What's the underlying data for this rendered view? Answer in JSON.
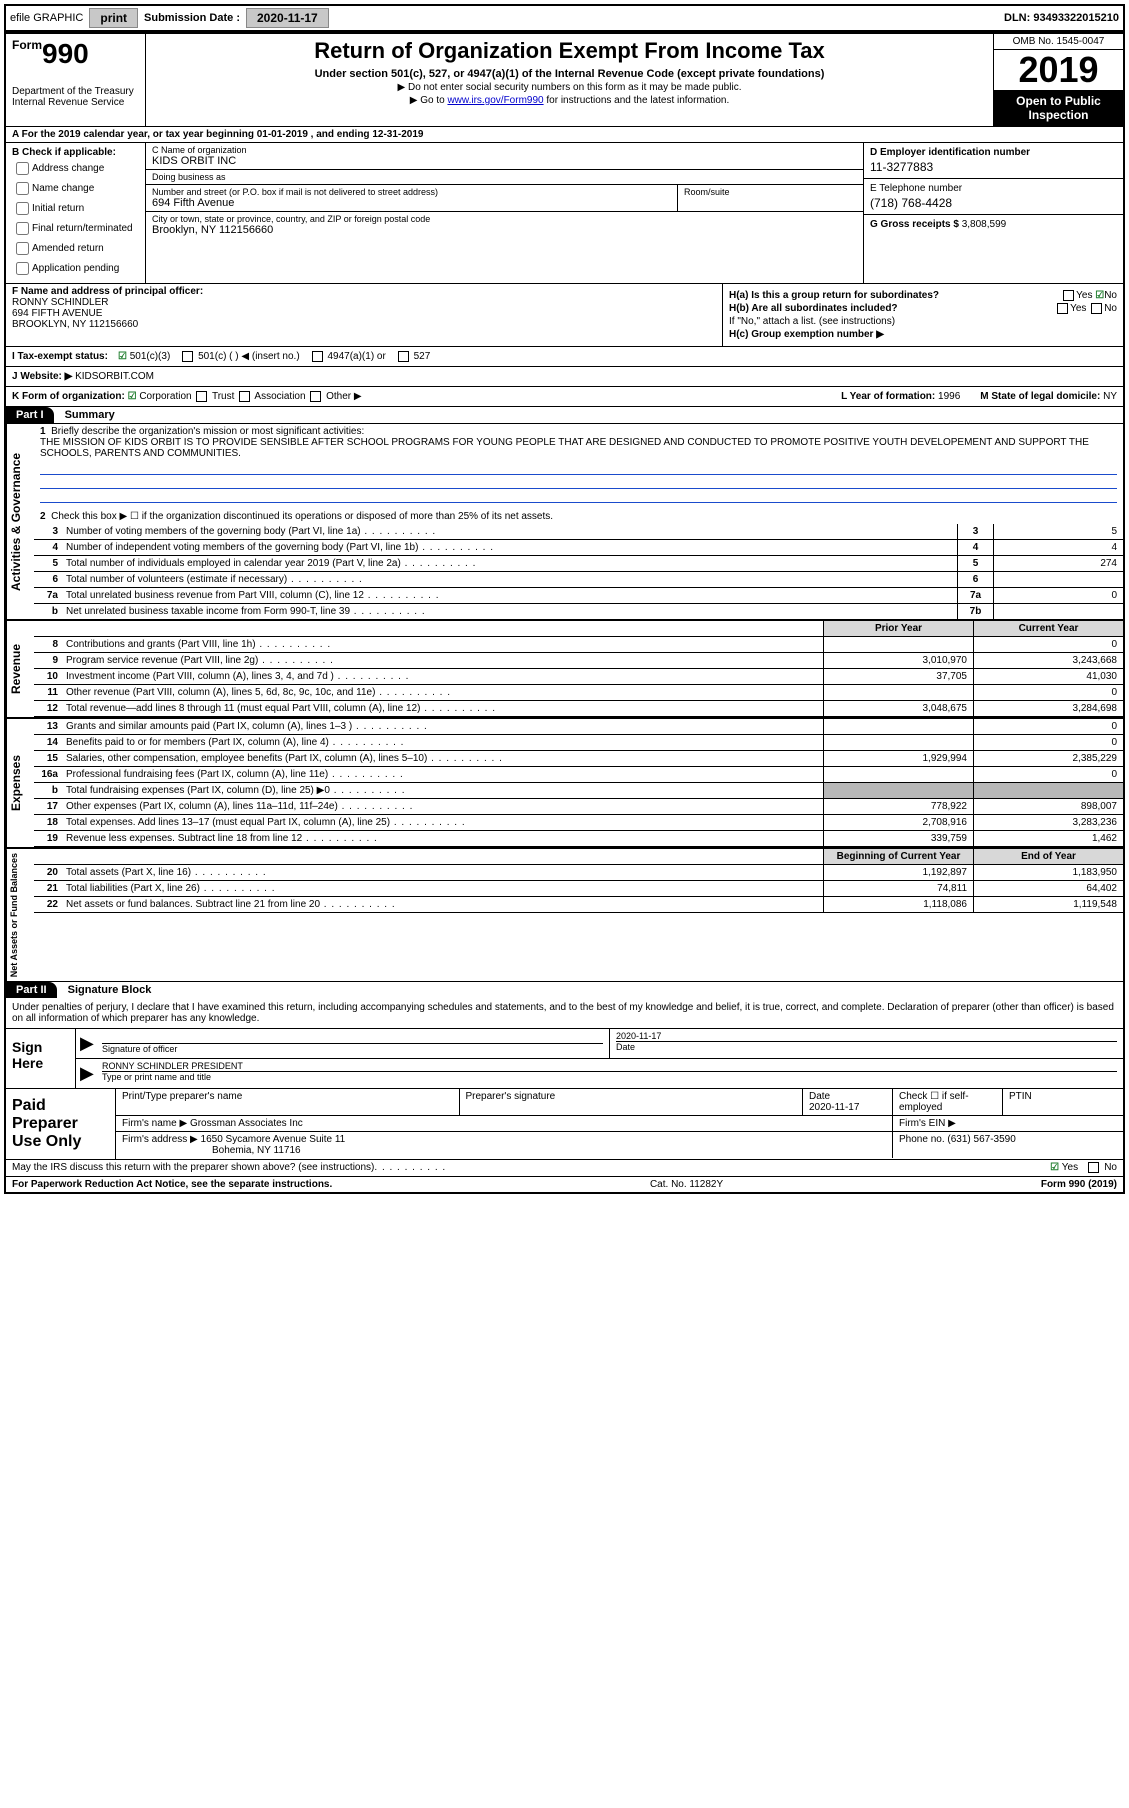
{
  "topbar": {
    "efile": "efile GRAPHIC",
    "print": "print",
    "subdate_label": "Submission Date :",
    "subdate": "2020-11-17",
    "dln": "DLN: 93493322015210"
  },
  "header": {
    "form_word": "Form",
    "form_num": "990",
    "dept": "Department of the Treasury\nInternal Revenue Service",
    "title": "Return of Organization Exempt From Income Tax",
    "sub1": "Under section 501(c), 527, or 4947(a)(1) of the Internal Revenue Code (except private foundations)",
    "sub2": "▶ Do not enter social security numbers on this form as it may be made public.",
    "sub3_pre": "▶ Go to ",
    "sub3_link": "www.irs.gov/Form990",
    "sub3_post": " for instructions and the latest information.",
    "omb": "OMB No. 1545-0047",
    "year": "2019",
    "open": "Open to Public Inspection"
  },
  "line_a": "A For the 2019 calendar year, or tax year beginning 01-01-2019    , and ending 12-31-2019",
  "section_b": {
    "header": "B Check if applicable:",
    "items": [
      "Address change",
      "Name change",
      "Initial return",
      "Final return/terminated",
      "Amended return",
      "Application pending"
    ]
  },
  "section_c": {
    "name_label": "C Name of organization",
    "name": "KIDS ORBIT INC",
    "dba_label": "Doing business as",
    "dba": "",
    "addr_label": "Number and street (or P.O. box if mail is not delivered to street address)",
    "room_label": "Room/suite",
    "addr": "694 Fifth Avenue",
    "city_label": "City or town, state or province, country, and ZIP or foreign postal code",
    "city": "Brooklyn, NY  112156660"
  },
  "section_d": {
    "label": "D Employer identification number",
    "ein": "11-3277883"
  },
  "section_e": {
    "label": "E Telephone number",
    "phone": "(718) 768-4428"
  },
  "section_g": {
    "label": "G Gross receipts $",
    "val": "3,808,599"
  },
  "section_f": {
    "label": "F  Name and address of principal officer:",
    "name": "RONNY SCHINDLER",
    "addr1": "694 FIFTH AVENUE",
    "addr2": "BROOKLYN, NY  112156660"
  },
  "section_h": {
    "ha": "H(a)  Is this a group return for subordinates?",
    "ha_yes": "Yes",
    "ha_no": "No",
    "hb": "H(b)  Are all subordinates included?",
    "hb_note": "If \"No,\" attach a list. (see instructions)",
    "hc": "H(c)  Group exemption number ▶"
  },
  "tax_status": {
    "label": "I  Tax-exempt status:",
    "c3": "501(c)(3)",
    "cx": "501(c) (   ) ◀ (insert no.)",
    "c4947": "4947(a)(1) or",
    "c527": "527"
  },
  "website": {
    "label": "J  Website: ▶",
    "val": "KIDSORBIT.COM"
  },
  "k_row": {
    "label": "K Form of organization:",
    "corp": "Corporation",
    "trust": "Trust",
    "assoc": "Association",
    "other": "Other ▶",
    "l_label": "L Year of formation:",
    "l_val": "1996",
    "m_label": "M State of legal domicile:",
    "m_val": "NY"
  },
  "part1": {
    "bar": "Part I",
    "title": "Summary"
  },
  "activities": {
    "vlabel": "Activities & Governance",
    "q1": "Briefly describe the organization's mission or most significant activities:",
    "mission": "THE MISSION OF KIDS ORBIT IS TO PROVIDE SENSIBLE AFTER SCHOOL PROGRAMS FOR YOUNG PEOPLE THAT ARE DESIGNED AND CONDUCTED TO PROMOTE POSITIVE YOUTH DEVELOPEMENT AND SUPPORT THE SCHOOLS, PARENTS AND COMMUNITIES.",
    "q2": "Check this box ▶ ☐  if the organization discontinued its operations or disposed of more than 25% of its net assets.",
    "rows": [
      {
        "n": "3",
        "t": "Number of voting members of the governing body (Part VI, line 1a)",
        "cell": "3",
        "val": "5"
      },
      {
        "n": "4",
        "t": "Number of independent voting members of the governing body (Part VI, line 1b)",
        "cell": "4",
        "val": "4"
      },
      {
        "n": "5",
        "t": "Total number of individuals employed in calendar year 2019 (Part V, line 2a)",
        "cell": "5",
        "val": "274"
      },
      {
        "n": "6",
        "t": "Total number of volunteers (estimate if necessary)",
        "cell": "6",
        "val": ""
      },
      {
        "n": "7a",
        "t": "Total unrelated business revenue from Part VIII, column (C), line 12",
        "cell": "7a",
        "val": "0"
      },
      {
        "n": "b",
        "t": "Net unrelated business taxable income from Form 990-T, line 39",
        "cell": "7b",
        "val": ""
      }
    ]
  },
  "fin_headers": {
    "prior": "Prior Year",
    "curr": "Current Year"
  },
  "revenue": {
    "vlabel": "Revenue",
    "rows": [
      {
        "n": "8",
        "t": "Contributions and grants (Part VIII, line 1h)",
        "p": "",
        "c": "0"
      },
      {
        "n": "9",
        "t": "Program service revenue (Part VIII, line 2g)",
        "p": "3,010,970",
        "c": "3,243,668"
      },
      {
        "n": "10",
        "t": "Investment income (Part VIII, column (A), lines 3, 4, and 7d )",
        "p": "37,705",
        "c": "41,030"
      },
      {
        "n": "11",
        "t": "Other revenue (Part VIII, column (A), lines 5, 6d, 8c, 9c, 10c, and 11e)",
        "p": "",
        "c": "0"
      },
      {
        "n": "12",
        "t": "Total revenue—add lines 8 through 11 (must equal Part VIII, column (A), line 12)",
        "p": "3,048,675",
        "c": "3,284,698"
      }
    ]
  },
  "expenses": {
    "vlabel": "Expenses",
    "rows": [
      {
        "n": "13",
        "t": "Grants and similar amounts paid (Part IX, column (A), lines 1–3 )",
        "p": "",
        "c": "0"
      },
      {
        "n": "14",
        "t": "Benefits paid to or for members (Part IX, column (A), line 4)",
        "p": "",
        "c": "0"
      },
      {
        "n": "15",
        "t": "Salaries, other compensation, employee benefits (Part IX, column (A), lines 5–10)",
        "p": "1,929,994",
        "c": "2,385,229"
      },
      {
        "n": "16a",
        "t": "Professional fundraising fees (Part IX, column (A), line 11e)",
        "p": "",
        "c": "0"
      },
      {
        "n": "b",
        "t": "Total fundraising expenses (Part IX, column (D), line 25) ▶0",
        "p": "GREY",
        "c": "GREY"
      },
      {
        "n": "17",
        "t": "Other expenses (Part IX, column (A), lines 11a–11d, 11f–24e)",
        "p": "778,922",
        "c": "898,007"
      },
      {
        "n": "18",
        "t": "Total expenses. Add lines 13–17 (must equal Part IX, column (A), line 25)",
        "p": "2,708,916",
        "c": "3,283,236"
      },
      {
        "n": "19",
        "t": "Revenue less expenses. Subtract line 18 from line 12",
        "p": "339,759",
        "c": "1,462"
      }
    ]
  },
  "netassets": {
    "vlabel": "Net Assets or Fund Balances",
    "hdr_p": "Beginning of Current Year",
    "hdr_c": "End of Year",
    "rows": [
      {
        "n": "20",
        "t": "Total assets (Part X, line 16)",
        "p": "1,192,897",
        "c": "1,183,950"
      },
      {
        "n": "21",
        "t": "Total liabilities (Part X, line 26)",
        "p": "74,811",
        "c": "64,402"
      },
      {
        "n": "22",
        "t": "Net assets or fund balances. Subtract line 21 from line 20",
        "p": "1,118,086",
        "c": "1,119,548"
      }
    ]
  },
  "part2": {
    "bar": "Part II",
    "title": "Signature Block"
  },
  "sig_decl": "Under penalties of perjury, I declare that I have examined this return, including accompanying schedules and statements, and to the best of my knowledge and belief, it is true, correct, and complete. Declaration of preparer (other than officer) is based on all information of which preparer has any knowledge.",
  "sign": {
    "label": "Sign Here",
    "sig_label": "Signature of officer",
    "date_label": "Date",
    "date": "2020-11-17",
    "name": "RONNY SCHINDLER  PRESIDENT",
    "name_label": "Type or print name and title"
  },
  "paid": {
    "label": "Paid Preparer Use Only",
    "h1": "Print/Type preparer's name",
    "h2": "Preparer's signature",
    "h3": "Date",
    "h3v": "2020-11-17",
    "h4": "Check ☐ if self-employed",
    "h5": "PTIN",
    "firm_label": "Firm's name    ▶",
    "firm": "Grossman Associates Inc",
    "ein_label": "Firm's EIN ▶",
    "addr_label": "Firm's address ▶",
    "addr1": "1650 Sycamore Avenue Suite 11",
    "addr2": "Bohemia, NY  11716",
    "phone_label": "Phone no.",
    "phone": "(631) 567-3590"
  },
  "footer": {
    "discuss": "May the IRS discuss this return with the preparer shown above? (see instructions)",
    "yes": "Yes",
    "no": "No",
    "pra": "For Paperwork Reduction Act Notice, see the separate instructions.",
    "cat": "Cat. No. 11282Y",
    "form": "Form 990 (2019)"
  }
}
